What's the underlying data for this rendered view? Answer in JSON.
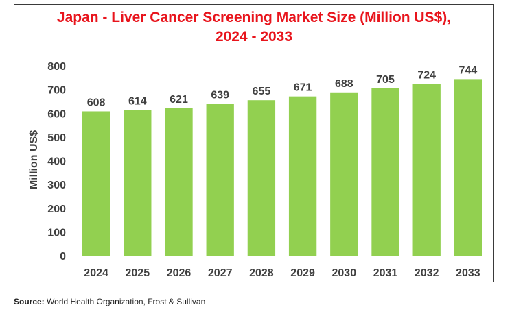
{
  "source": {
    "label": "Source:",
    "text": "World Health Organization, Frost & Sullivan"
  },
  "colors": {
    "bar": "#92d050",
    "title": "#e8141c",
    "text": "#404040"
  },
  "chart_data": {
    "type": "bar",
    "title": "Japan - Liver Cancer Screening Market Size (Million US$), 2024 - 2033",
    "xlabel": "",
    "ylabel": "Million US$",
    "ylim": [
      0,
      800
    ],
    "yticks": [
      0,
      100,
      200,
      300,
      400,
      500,
      600,
      700,
      800
    ],
    "grid": false,
    "legend": "none",
    "categories": [
      "2024",
      "2025",
      "2026",
      "2027",
      "2028",
      "2029",
      "2030",
      "2031",
      "2032",
      "2033"
    ],
    "values": [
      608,
      614,
      621,
      639,
      655,
      671,
      688,
      705,
      724,
      744
    ]
  }
}
